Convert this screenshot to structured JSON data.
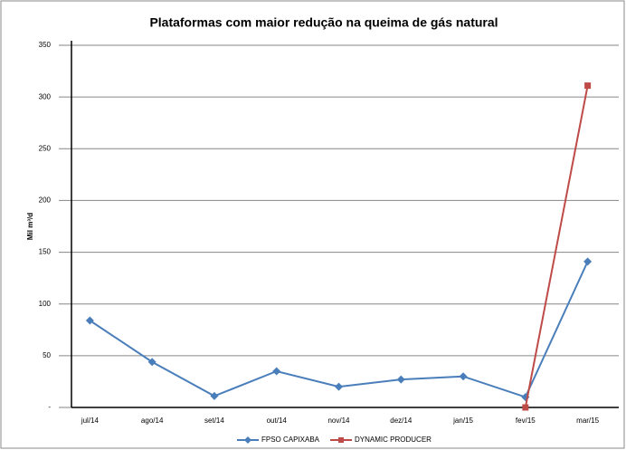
{
  "chart_data": {
    "type": "line",
    "title": "Plataformas com maior redução na queima de gás natural",
    "y_label": "Mil m³/d",
    "categories": [
      "jul/14",
      "ago/14",
      "set/14",
      "out/14",
      "nov/14",
      "dez/14",
      "jan/15",
      "fev/15",
      "mar/15"
    ],
    "series": [
      {
        "name": "FPSO CAPIXABA",
        "color": "#4a7ebb",
        "marker": "diamond",
        "values": [
          84,
          44,
          11,
          35,
          20,
          27,
          30,
          10,
          141
        ]
      },
      {
        "name": "DYNAMIC PRODUCER",
        "color": "#be4b48",
        "marker": "square",
        "values": [
          null,
          null,
          null,
          null,
          null,
          null,
          null,
          0,
          311
        ]
      }
    ],
    "ylim": [
      0,
      350
    ],
    "yticks": [
      {
        "value": 0,
        "label": "-"
      },
      50,
      100,
      150,
      200,
      250,
      300,
      350
    ],
    "grid": true,
    "legend": "bottom"
  }
}
